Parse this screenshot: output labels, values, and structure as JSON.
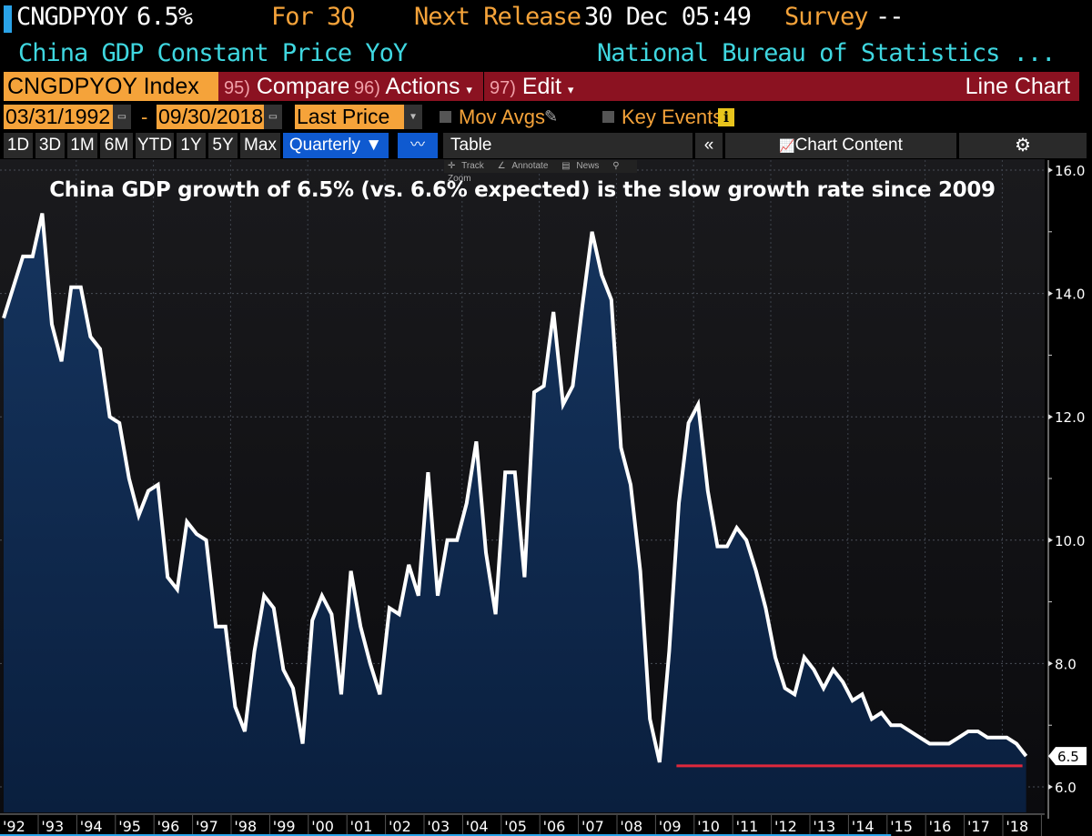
{
  "header": {
    "ticker": "CNGDPYOY",
    "value": "6.5%",
    "period_label": "For 3Q",
    "next_release_label": "Next Release",
    "next_release_value": "30 Dec 05:49",
    "survey_label": "Survey",
    "survey_value": "--",
    "description": "China GDP Constant Price YoY",
    "source": "National Bureau of Statistics ..."
  },
  "toolbar": {
    "security": "CNGDPYOY Index",
    "compare": {
      "num": "95)",
      "label": "Compare"
    },
    "actions": {
      "num": "96)",
      "label": "Actions",
      "arrow": "▾"
    },
    "edit": {
      "num": "97)",
      "label": "Edit",
      "arrow": "▾"
    },
    "chart_type": "Line Chart"
  },
  "settings": {
    "start_date": "03/31/1992",
    "dash": "-",
    "end_date": "09/30/2018",
    "field": "Last Price",
    "mov_avgs": "Mov Avgs",
    "key_events": "Key Events",
    "info_icon": "i"
  },
  "range_buttons": [
    "1D",
    "3D",
    "1M",
    "6M",
    "YTD",
    "1Y",
    "5Y",
    "Max"
  ],
  "frequency": "Quarterly ▼",
  "table_label": "Table",
  "collapse_label": "«",
  "chart_content_label": "Chart Content",
  "tools": [
    "Track",
    "Annotate",
    "News",
    "Zoom"
  ],
  "chart_data": {
    "type": "area",
    "title": "China GDP growth of 6.5% (vs. 6.6% expected) is the slow growth rate since 2009",
    "xlabel": "",
    "ylabel": "",
    "ylim": [
      5.8,
      16.1
    ],
    "yticks": [
      6.0,
      8.0,
      10.0,
      12.0,
      14.0,
      16.0
    ],
    "ytick_labels": [
      "6.0",
      "8.0",
      "10.0",
      "12.0",
      "14.0",
      "16.0"
    ],
    "xtick_labels": [
      "'92",
      "'93",
      "'94",
      "'95",
      "'96",
      "'97",
      "'98",
      "'99",
      "'00",
      "'01",
      "'02",
      "'03",
      "'04",
      "'05",
      "'06",
      "'07",
      "'08",
      "'09",
      "'10",
      "'11",
      "'12",
      "'13",
      "'14",
      "'15",
      "'16",
      "'17",
      "'18"
    ],
    "grid": true,
    "last_value_label": "6.5",
    "reference_line": {
      "value": 6.4,
      "from": "2009Q2",
      "to": "2018Q3",
      "color": "#e0283c"
    },
    "start": "1992Q1",
    "frequency": "quarterly",
    "series": [
      {
        "name": "CNGDPYOY Index",
        "values": [
          13.6,
          14.1,
          14.6,
          14.6,
          15.3,
          13.5,
          12.9,
          14.1,
          14.1,
          13.3,
          13.1,
          12.0,
          11.9,
          11.0,
          10.4,
          10.8,
          10.9,
          9.4,
          9.2,
          10.3,
          10.1,
          10.0,
          8.6,
          8.6,
          7.3,
          6.9,
          8.2,
          9.1,
          8.9,
          7.9,
          7.6,
          6.7,
          8.7,
          9.1,
          8.8,
          7.5,
          9.5,
          8.6,
          8.0,
          7.5,
          8.9,
          8.8,
          9.6,
          9.1,
          11.1,
          9.1,
          10.0,
          10.0,
          10.6,
          11.6,
          9.8,
          8.8,
          11.1,
          11.1,
          9.4,
          12.4,
          12.5,
          13.7,
          12.2,
          12.5,
          13.8,
          15.0,
          14.3,
          13.9,
          11.5,
          10.9,
          9.5,
          7.1,
          6.4,
          8.2,
          10.6,
          11.9,
          12.2,
          10.8,
          9.9,
          9.9,
          10.2,
          10.0,
          9.5,
          8.9,
          8.1,
          7.6,
          7.5,
          8.1,
          7.9,
          7.6,
          7.9,
          7.7,
          7.4,
          7.5,
          7.1,
          7.2,
          7.0,
          7.0,
          6.9,
          6.8,
          6.7,
          6.7,
          6.7,
          6.8,
          6.9,
          6.9,
          6.8,
          6.8,
          6.8,
          6.7,
          6.5
        ]
      }
    ]
  },
  "colors": {
    "accent_orange": "#f5a33a",
    "header_red": "#8b1221",
    "cyan": "#3fd7e0",
    "fill": "#0f2a4e",
    "line": "#ffffff",
    "ref_line": "#e0283c",
    "active_blue": "#0f5ad0"
  }
}
